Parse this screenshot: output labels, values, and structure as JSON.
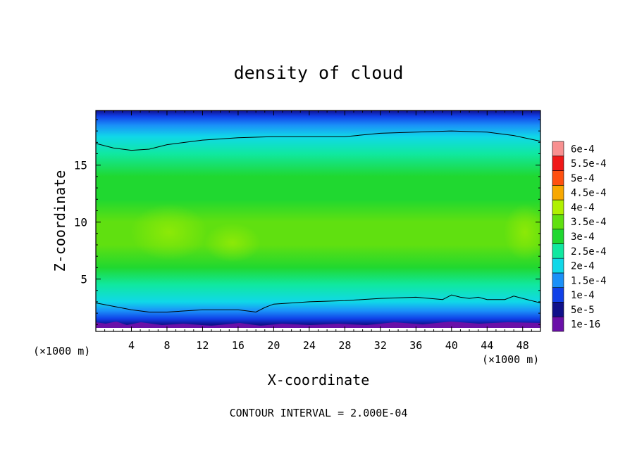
{
  "chart_data": {
    "type": "heatmap",
    "title": "density of cloud",
    "xlabel": "X-coordinate",
    "ylabel": "Z-coordinate",
    "x_unit_left": "(×1000 m)",
    "x_unit_right": "(×1000 m)",
    "footer": "CONTOUR INTERVAL = 2.000E-04",
    "xlim": [
      0,
      50
    ],
    "ylim": [
      0.4,
      19.8
    ],
    "x_ticks": [
      {
        "value": 4,
        "label": "4"
      },
      {
        "value": 8,
        "label": "8"
      },
      {
        "value": 12,
        "label": "12"
      },
      {
        "value": 16,
        "label": "16"
      },
      {
        "value": 20,
        "label": "20"
      },
      {
        "value": 24,
        "label": "24"
      },
      {
        "value": 28,
        "label": "28"
      },
      {
        "value": 32,
        "label": "32"
      },
      {
        "value": 36,
        "label": "36"
      },
      {
        "value": 40,
        "label": "40"
      },
      {
        "value": 44,
        "label": "44"
      },
      {
        "value": 48,
        "label": "48"
      }
    ],
    "y_ticks": [
      {
        "value": 5,
        "label": "5"
      },
      {
        "value": 10,
        "label": "10"
      },
      {
        "value": 15,
        "label": "15"
      }
    ],
    "contour_interval": 0.0002,
    "colorbar": [
      {
        "label": "1e-16",
        "color": "#6a10a8"
      },
      {
        "label": "5e-5",
        "color": "#10108a"
      },
      {
        "label": "1e-4",
        "color": "#1040e8"
      },
      {
        "label": "1.5e-4",
        "color": "#1a90f8"
      },
      {
        "label": "2e-4",
        "color": "#10d8e8"
      },
      {
        "label": "2.5e-4",
        "color": "#10e8a0"
      },
      {
        "label": "3e-4",
        "color": "#20d830"
      },
      {
        "label": "3.5e-4",
        "color": "#60e010"
      },
      {
        "label": "4e-4",
        "color": "#b0f000"
      },
      {
        "label": "4.5e-4",
        "color": "#f8a800"
      },
      {
        "label": "5e-4",
        "color": "#ff5010"
      },
      {
        "label": "5.5e-4",
        "color": "#f01818"
      },
      {
        "label": "6e-4",
        "color": "#f89090"
      }
    ],
    "vertical_profile": [
      {
        "z": 0.6,
        "value": 0.0
      },
      {
        "z": 1.0,
        "value": 4e-05
      },
      {
        "z": 1.5,
        "value": 9e-05
      },
      {
        "z": 2.2,
        "value": 0.00014
      },
      {
        "z": 3.0,
        "value": 0.0002
      },
      {
        "z": 4.5,
        "value": 0.00026
      },
      {
        "z": 6.0,
        "value": 0.00031
      },
      {
        "z": 8.0,
        "value": 0.00036
      },
      {
        "z": 10.0,
        "value": 0.00035
      },
      {
        "z": 12.0,
        "value": 0.00032
      },
      {
        "z": 14.0,
        "value": 0.00029
      },
      {
        "z": 16.0,
        "value": 0.00025
      },
      {
        "z": 17.5,
        "value": 0.0002
      },
      {
        "z": 18.5,
        "value": 0.00015
      },
      {
        "z": 19.3,
        "value": 0.0001
      },
      {
        "z": 19.8,
        "value": 6e-05
      }
    ],
    "contour_lines": [
      {
        "level": 0.0002,
        "points": [
          [
            0,
            16.9
          ],
          [
            2,
            16.5
          ],
          [
            4,
            16.3
          ],
          [
            6,
            16.4
          ],
          [
            8,
            16.8
          ],
          [
            12,
            17.2
          ],
          [
            16,
            17.4
          ],
          [
            20,
            17.5
          ],
          [
            24,
            17.5
          ],
          [
            28,
            17.5
          ],
          [
            32,
            17.8
          ],
          [
            36,
            17.9
          ],
          [
            40,
            18.0
          ],
          [
            44,
            17.9
          ],
          [
            47,
            17.6
          ],
          [
            50,
            17.1
          ]
        ]
      },
      {
        "level": 0.0002,
        "points": [
          [
            0,
            2.9
          ],
          [
            2,
            2.6
          ],
          [
            4,
            2.3
          ],
          [
            6,
            2.1
          ],
          [
            8,
            2.1
          ],
          [
            12,
            2.3
          ],
          [
            16,
            2.3
          ],
          [
            18,
            2.1
          ],
          [
            19,
            2.5
          ],
          [
            20,
            2.8
          ],
          [
            24,
            3.0
          ],
          [
            28,
            3.1
          ],
          [
            32,
            3.3
          ],
          [
            36,
            3.4
          ],
          [
            39,
            3.2
          ],
          [
            40,
            3.6
          ],
          [
            41,
            3.4
          ],
          [
            42,
            3.3
          ],
          [
            43,
            3.4
          ],
          [
            44,
            3.2
          ],
          [
            46,
            3.2
          ],
          [
            47,
            3.5
          ],
          [
            48,
            3.3
          ],
          [
            50,
            2.9
          ]
        ]
      }
    ]
  }
}
